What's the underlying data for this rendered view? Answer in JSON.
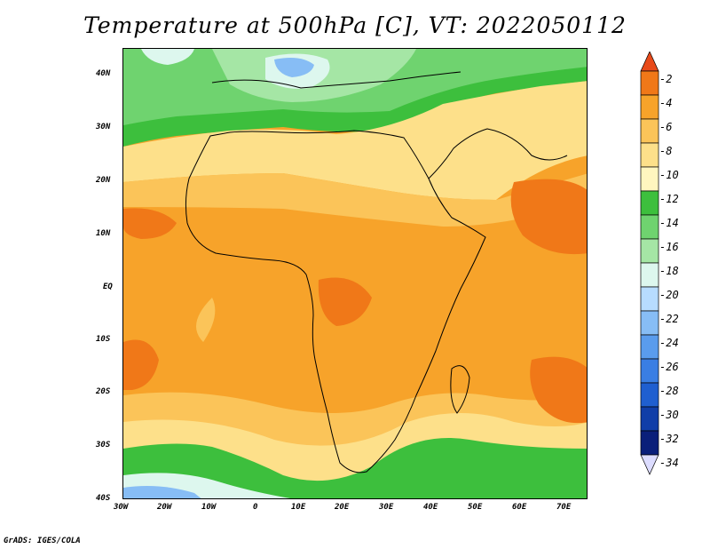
{
  "title": "Temperature at 500hPa [C], VT: 2022050112",
  "credit": "GrADS: IGES/COLA",
  "map": {
    "lat_labels": [
      "40N",
      "30N",
      "20N",
      "10N",
      "EQ",
      "10S",
      "20S",
      "30S",
      "40S"
    ],
    "lon_labels": [
      "30W",
      "20W",
      "10W",
      "0",
      "10E",
      "20E",
      "30E",
      "40E",
      "50E",
      "60E",
      "70E"
    ],
    "lon_range": [
      -30,
      75
    ],
    "lat_range": [
      -40,
      45
    ]
  },
  "colorbar": {
    "labels": [
      "-2",
      "-4",
      "-6",
      "-8",
      "-10",
      "-12",
      "-14",
      "-16",
      "-18",
      "-20",
      "-22",
      "-24",
      "-26",
      "-28",
      "-30",
      "-32",
      "-34"
    ],
    "colors": [
      "#e84a1a",
      "#f07818",
      "#f7a32a",
      "#fbc459",
      "#fde08a",
      "#fff6bf",
      "#3dbf3d",
      "#6fd36f",
      "#a5e6a5",
      "#ddf7ee",
      "#b7dcff",
      "#87bdf5",
      "#5a9ced",
      "#3a7ee3",
      "#1f5fd0",
      "#103ea8",
      "#0a1f7a",
      "#dcdcff"
    ]
  }
}
